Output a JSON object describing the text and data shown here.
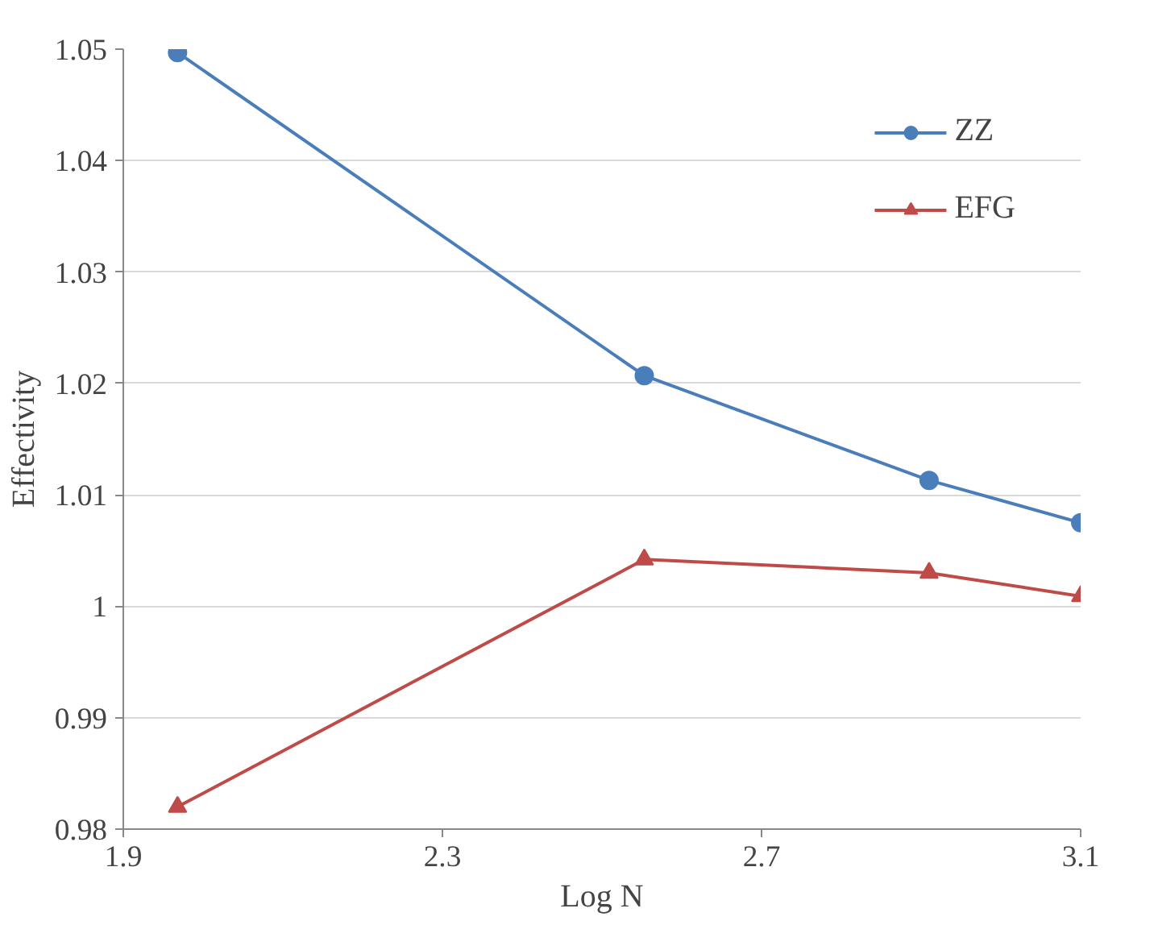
{
  "chart_data": {
    "type": "line",
    "xlabel": "Log N",
    "ylabel": "Effectivity",
    "xlim": [
      1.9,
      3.1
    ],
    "xticks": [
      1.9,
      2.3,
      2.7,
      3.1
    ],
    "ylim": [
      0.98,
      1.05
    ],
    "yticks": [
      {
        "value": 0.98,
        "label": "0.98"
      },
      {
        "value": 0.99,
        "label": "0.99"
      },
      {
        "value": 1,
        "label": "1"
      },
      {
        "value": 1.01,
        "label": "1.01"
      },
      {
        "value": 1.02,
        "label": "1.02"
      },
      {
        "value": 1.03,
        "label": "1.03"
      },
      {
        "value": 1.04,
        "label": "1.04"
      },
      {
        "value": 1.05,
        "label": "1.05"
      }
    ],
    "x": [
      1.968,
      2.553,
      2.91,
      3.1
    ],
    "series": [
      {
        "name": "ZZ",
        "color": "#4a7ebb",
        "marker": "circle",
        "values": [
          1.0497,
          1.0207,
          1.0113,
          1.0075
        ]
      },
      {
        "name": "EFG",
        "color": "#be4b48",
        "marker": "triangle",
        "values": [
          0.982,
          1.0042,
          1.003,
          1.0009
        ]
      }
    ],
    "grid": "y",
    "legend": "top right",
    "line_style": "solid"
  }
}
